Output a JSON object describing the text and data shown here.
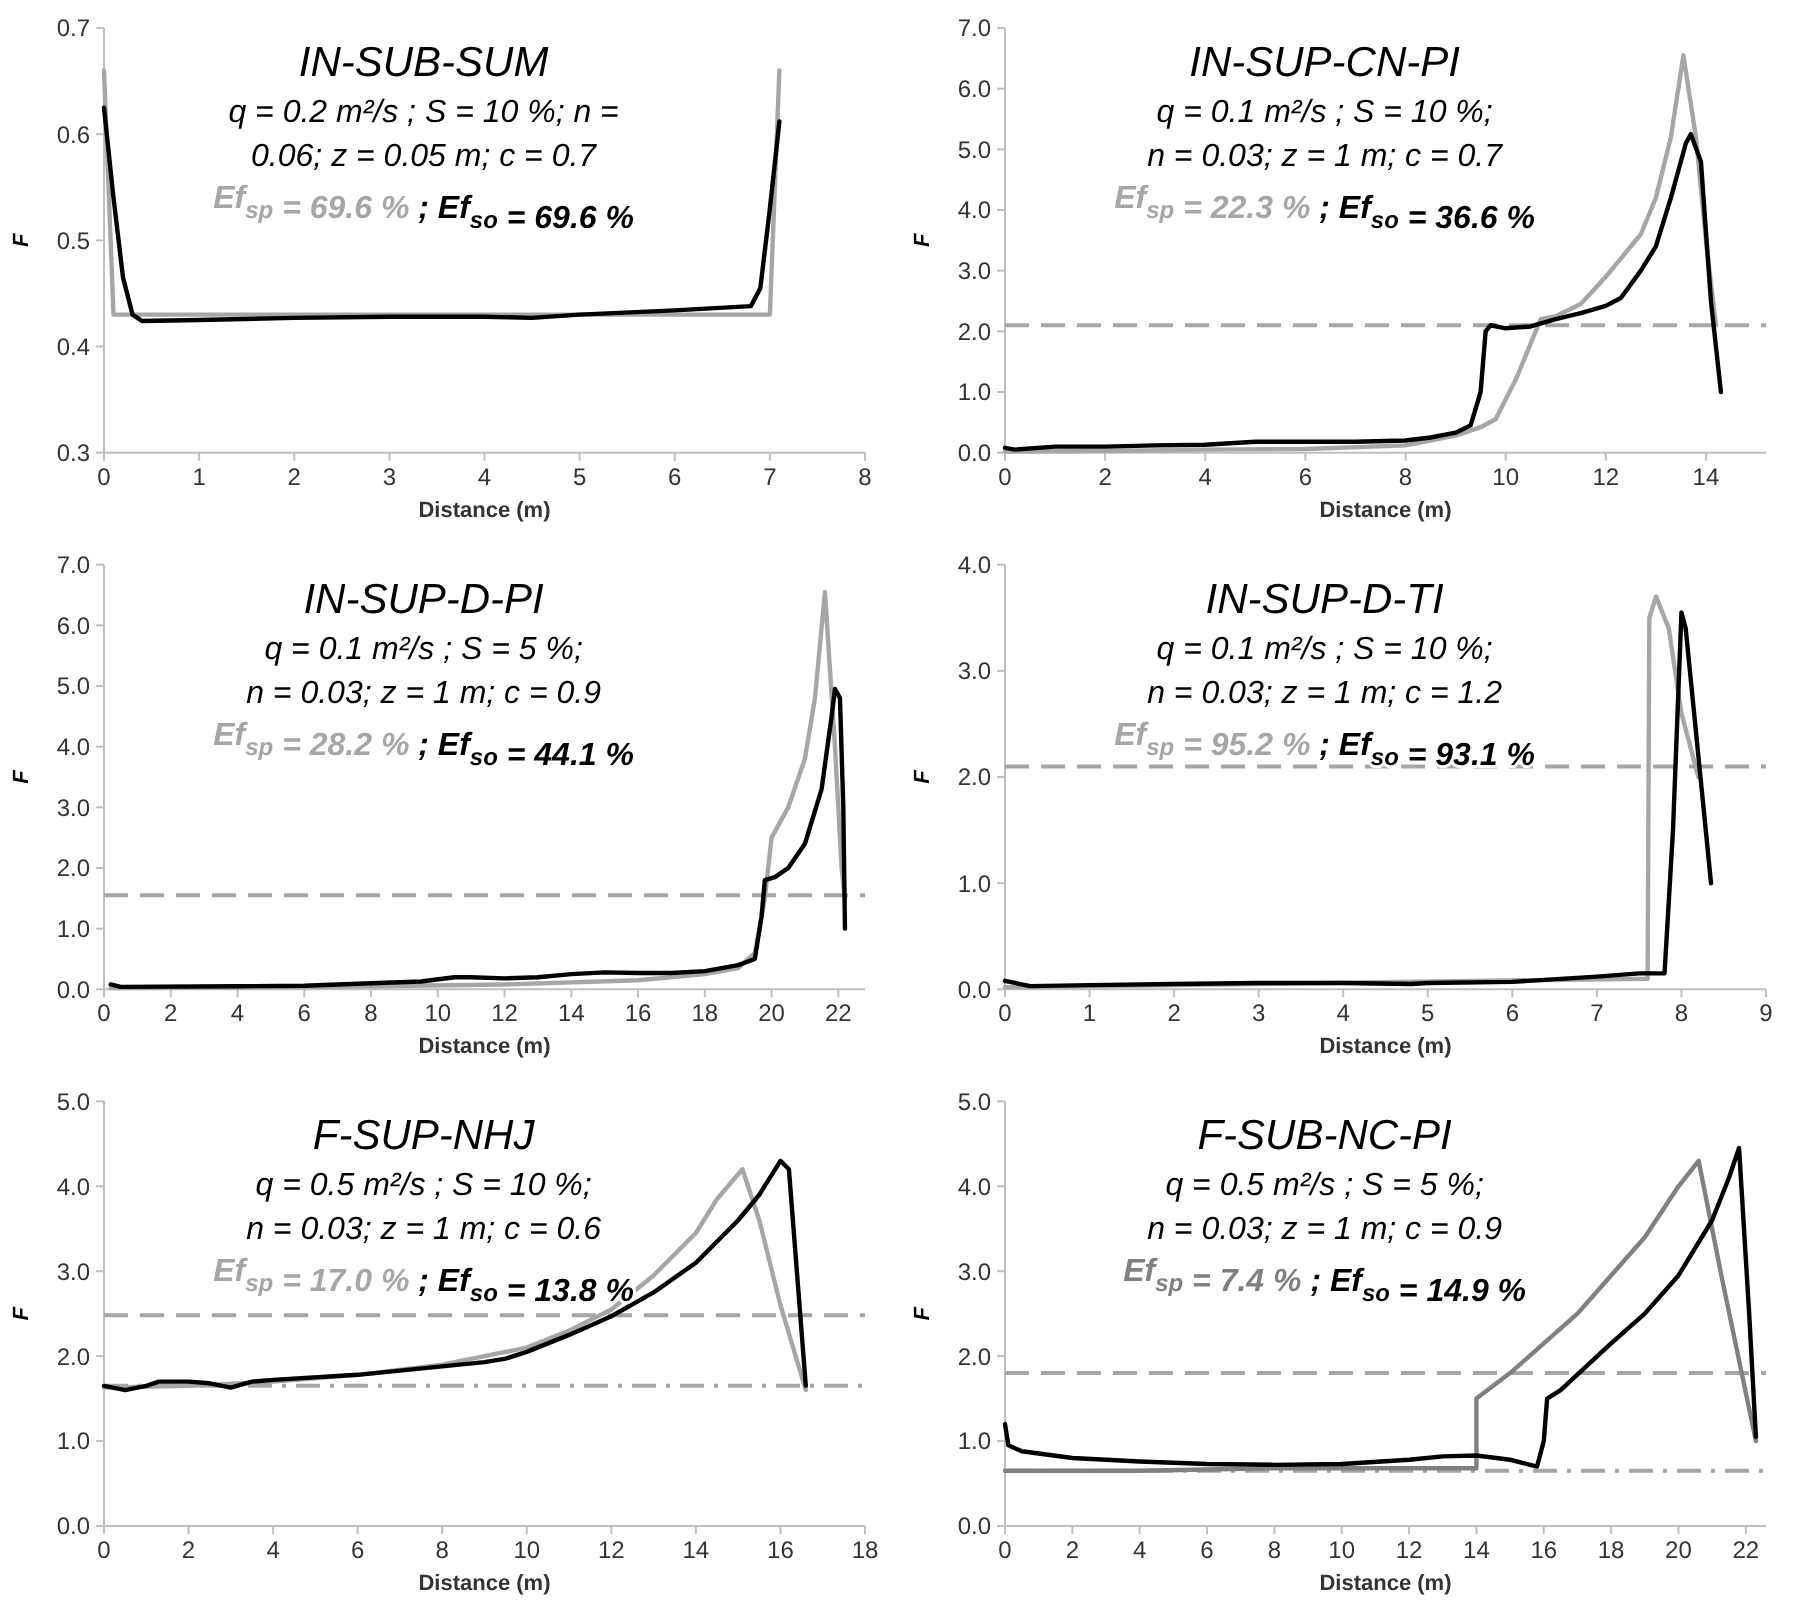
{
  "chart_data": [
    {
      "type": "line",
      "title": "IN-SUB-SUM",
      "annotations": [
        "q =  0.2 m²/s ; S = 10 %; n =",
        "0.06; z = 0.05 m; c = 0.7",
        "Ef$_{sp}$ = 69.6 %",
        "; Ef$_{so}$ = 69.6 %"
      ],
      "xlabel": "Distance (m)",
      "ylabel": "F",
      "xlim": [
        0,
        8
      ],
      "xticks": [
        0,
        1,
        2,
        3,
        4,
        5,
        6,
        7,
        8
      ],
      "ylim": [
        0.3,
        0.7
      ],
      "yticks": [
        0.3,
        0.4,
        0.5,
        0.6,
        0.7
      ],
      "series": [
        {
          "color": "#a6a6a6",
          "x": [
            0,
            0.1,
            7.0,
            7.1
          ],
          "values": [
            0.66,
            0.43,
            0.43,
            0.66
          ]
        },
        {
          "color": "#000000",
          "x": [
            0,
            0.1,
            0.2,
            0.3,
            0.4,
            1,
            2,
            3,
            4,
            4.5,
            5,
            6,
            6.8,
            6.9,
            7.0,
            7.1
          ],
          "values": [
            0.625,
            0.54,
            0.465,
            0.43,
            0.424,
            0.425,
            0.427,
            0.428,
            0.428,
            0.427,
            0.43,
            0.434,
            0.438,
            0.455,
            0.53,
            0.612
          ]
        }
      ]
    },
    {
      "type": "line",
      "title": "IN-SUP-CN-PI",
      "annotations": [
        "q =  0.1 m²/s ; S = 10 %;",
        "n = 0.03; z = 1 m; c = 0.7",
        "Ef$_{sp}$ = 22.3 %",
        "; Ef$_{so}$ = 36.6 %"
      ],
      "xlabel": "Distance (m)",
      "ylabel": "F",
      "xlim": [
        0,
        15.2
      ],
      "xticks": [
        0,
        2,
        4,
        6,
        8,
        10,
        12,
        14
      ],
      "ylim": [
        0,
        7
      ],
      "yticks": [
        {
          "value": 0,
          "label": "0.0"
        },
        {
          "value": 1,
          "label": "1.0"
        },
        {
          "value": 2,
          "label": "2.0"
        },
        {
          "value": 3,
          "label": "3.0"
        },
        {
          "value": 4,
          "label": "4.0"
        },
        {
          "value": 5,
          "label": "5.0"
        },
        {
          "value": 6,
          "label": "6.0"
        },
        {
          "value": 7,
          "label": "7.0"
        }
      ],
      "ref_lines": [
        {
          "axis": "y",
          "value": 2.1,
          "color": "#a6a6a6",
          "line_style": "dashed"
        }
      ],
      "series": [
        {
          "color": "#a6a6a6",
          "x": [
            0,
            2,
            4,
            6,
            8,
            9,
            9.5,
            9.8,
            10.2,
            10.7,
            11,
            11.5,
            12,
            12.3,
            12.7,
            13,
            13.3,
            13.55,
            13.8,
            14,
            14.2
          ],
          "values": [
            0.02,
            0.03,
            0.05,
            0.06,
            0.12,
            0.28,
            0.42,
            0.55,
            1.2,
            2.2,
            2.25,
            2.45,
            2.9,
            3.2,
            3.6,
            4.2,
            5.2,
            6.55,
            5.2,
            3.5,
            2.1
          ]
        },
        {
          "color": "#000000",
          "x": [
            0,
            0.2,
            1,
            2,
            3,
            4,
            5,
            6,
            7,
            8,
            8.5,
            9,
            9.3,
            9.5,
            9.6,
            9.7,
            10,
            10.5,
            11,
            11.5,
            12,
            12.3,
            12.7,
            13,
            13.3,
            13.6,
            13.7,
            13.9,
            14.1,
            14.3
          ],
          "values": [
            0.08,
            0.05,
            0.1,
            0.1,
            0.12,
            0.13,
            0.18,
            0.18,
            0.18,
            0.2,
            0.25,
            0.33,
            0.45,
            1.0,
            2.0,
            2.1,
            2.05,
            2.08,
            2.2,
            2.3,
            2.42,
            2.55,
            3.0,
            3.4,
            4.2,
            5.1,
            5.25,
            4.8,
            2.5,
            1.0
          ]
        }
      ]
    },
    {
      "type": "line",
      "title": "IN-SUP-D-PI",
      "annotations": [
        "q =  0.1 m²/s ; S = 5 %;",
        "n = 0.03; z = 1 m; c = 0.9",
        "Ef$_{sp}$ = 28.2 %",
        "; Ef$_{so}$ = 44.1 %"
      ],
      "xlabel": "Distance (m)",
      "ylabel": "F",
      "xlim": [
        0,
        22.8
      ],
      "xticks": [
        0,
        2,
        4,
        6,
        8,
        10,
        12,
        14,
        16,
        18,
        20,
        22
      ],
      "ylim": [
        0,
        7
      ],
      "yticks": [
        {
          "value": 0,
          "label": "0.0"
        },
        {
          "value": 1,
          "label": "1.0"
        },
        {
          "value": 2,
          "label": "2.0"
        },
        {
          "value": 3,
          "label": "3.0"
        },
        {
          "value": 4,
          "label": "4.0"
        },
        {
          "value": 5,
          "label": "5.0"
        },
        {
          "value": 6,
          "label": "6.0"
        },
        {
          "value": 7,
          "label": "7.0"
        }
      ],
      "ref_lines": [
        {
          "axis": "y",
          "value": 1.55,
          "color": "#a6a6a6",
          "line_style": "dashed"
        }
      ],
      "series": [
        {
          "color": "#a6a6a6",
          "x": [
            0.2,
            4,
            8,
            12,
            16,
            18,
            19,
            19.5,
            19.8,
            20,
            20.5,
            21,
            21.3,
            21.6,
            21.9,
            22.1,
            22.2
          ],
          "values": [
            0.02,
            0.03,
            0.05,
            0.08,
            0.15,
            0.25,
            0.35,
            0.6,
            1.5,
            2.5,
            3.0,
            3.8,
            4.8,
            6.55,
            4.0,
            2.0,
            1.5
          ]
        },
        {
          "color": "#000000",
          "x": [
            0.2,
            0.5,
            4,
            6,
            8,
            9.5,
            10.5,
            11,
            12,
            13,
            14,
            15,
            16,
            17,
            18,
            19,
            19.5,
            19.7,
            19.8,
            20.1,
            20.5,
            21,
            21.5,
            21.8,
            21.9,
            22.05,
            22.15,
            22.2
          ],
          "values": [
            0.08,
            0.04,
            0.05,
            0.06,
            0.1,
            0.13,
            0.2,
            0.2,
            0.18,
            0.2,
            0.25,
            0.28,
            0.27,
            0.27,
            0.3,
            0.4,
            0.5,
            1.2,
            1.8,
            1.85,
            2.0,
            2.4,
            3.3,
            4.5,
            4.95,
            4.8,
            3.0,
            1.0
          ]
        }
      ]
    },
    {
      "type": "line",
      "title": "IN-SUP-D-TI",
      "annotations": [
        "q =  0.1 m²/s ; S = 10 %;",
        "n = 0.03; z = 1 m; c = 1.2",
        "Ef$_{sp}$ = 95.2 %",
        "; Ef$_{so}$ = 93.1 %"
      ],
      "xlabel": "Distance (m)",
      "ylabel": "F",
      "xlim": [
        0,
        9
      ],
      "xticks": [
        0,
        1,
        2,
        3,
        4,
        5,
        6,
        7,
        8,
        9
      ],
      "ylim": [
        0,
        4
      ],
      "yticks": [
        {
          "value": 0,
          "label": "0.0"
        },
        {
          "value": 1,
          "label": "1.0"
        },
        {
          "value": 2,
          "label": "2.0"
        },
        {
          "value": 3,
          "label": "3.0"
        },
        {
          "value": 4,
          "label": "4.0"
        }
      ],
      "ref_lines": [
        {
          "axis": "y",
          "value": 2.1,
          "color": "#a6a6a6",
          "line_style": "dashed"
        }
      ],
      "series": [
        {
          "color": "#a6a6a6",
          "x": [
            0,
            7.6,
            7.62,
            7.7,
            7.85,
            8.0,
            8.2
          ],
          "values": [
            0.02,
            0.1,
            3.5,
            3.7,
            3.4,
            2.6,
            2.0
          ]
        },
        {
          "color": "#000000",
          "x": [
            0,
            0.3,
            1,
            2,
            3,
            4,
            4.8,
            5,
            6,
            7,
            7.5,
            7.8,
            7.9,
            8.0,
            8.05,
            8.35
          ],
          "values": [
            0.08,
            0.03,
            0.04,
            0.05,
            0.06,
            0.06,
            0.05,
            0.06,
            0.07,
            0.12,
            0.15,
            0.15,
            1.5,
            3.55,
            3.4,
            1.0
          ]
        }
      ]
    },
    {
      "type": "line",
      "title": "F-SUP-NHJ",
      "annotations": [
        "q =  0.5 m²/s ; S = 10 %;",
        "n = 0.03; z = 1 m; c = 0.6",
        "Ef$_{sp}$ = 17.0 %",
        "; Ef$_{so}$ = 13.8 %"
      ],
      "xlabel": "Distance (m)",
      "ylabel": "F",
      "xlim": [
        0,
        18
      ],
      "xticks": [
        0,
        2,
        4,
        6,
        8,
        10,
        12,
        14,
        16,
        18
      ],
      "ylim": [
        0,
        5
      ],
      "yticks": [
        {
          "value": 0,
          "label": "0.0"
        },
        {
          "value": 1,
          "label": "1.0"
        },
        {
          "value": 2,
          "label": "2.0"
        },
        {
          "value": 3,
          "label": "3.0"
        },
        {
          "value": 4,
          "label": "4.0"
        },
        {
          "value": 5,
          "label": "5.0"
        }
      ],
      "ref_lines": [
        {
          "axis": "y",
          "value": 2.48,
          "color": "#a6a6a6",
          "line_style": "dashed"
        },
        {
          "axis": "y",
          "value": 1.65,
          "color": "#a6a6a6",
          "line_style": "dashdot"
        }
      ],
      "series": [
        {
          "color": "#a6a6a6",
          "x": [
            0,
            2,
            4,
            6,
            8,
            10,
            11,
            12,
            13,
            14,
            14.5,
            15.1,
            15.5,
            16,
            16.6
          ],
          "values": [
            1.63,
            1.65,
            1.7,
            1.78,
            1.9,
            2.1,
            2.3,
            2.55,
            2.95,
            3.45,
            3.85,
            4.2,
            3.6,
            2.6,
            1.6
          ]
        },
        {
          "color": "#000000",
          "x": [
            0,
            0.5,
            1,
            1.3,
            2,
            2.5,
            3,
            3.5,
            4,
            6,
            8,
            9,
            9.5,
            10,
            11,
            12,
            13,
            14,
            15,
            15.5,
            16,
            16.2,
            16.6
          ],
          "values": [
            1.65,
            1.6,
            1.65,
            1.7,
            1.7,
            1.68,
            1.63,
            1.7,
            1.72,
            1.78,
            1.88,
            1.93,
            1.97,
            2.05,
            2.25,
            2.47,
            2.75,
            3.1,
            3.6,
            3.9,
            4.3,
            4.2,
            1.65
          ]
        }
      ]
    },
    {
      "type": "line",
      "title": "F-SUB-NC-PI",
      "annotations": [
        "q =  0.5 m²/s ; S = 5 %;",
        "n = 0.03; z = 1 m; c = 0.9",
        "Ef$_{sp}$ = 7.4 %",
        "; Ef$_{so}$ = 14.9 %"
      ],
      "xlabel": "Distance (m)",
      "ylabel": "F",
      "xlim": [
        0,
        22.6
      ],
      "xticks": [
        0,
        2,
        4,
        6,
        8,
        10,
        12,
        14,
        16,
        18,
        20,
        22
      ],
      "ylim": [
        0,
        5
      ],
      "yticks": [
        {
          "value": 0,
          "label": "0.0"
        },
        {
          "value": 1,
          "label": "1.0"
        },
        {
          "value": 2,
          "label": "2.0"
        },
        {
          "value": 3,
          "label": "3.0"
        },
        {
          "value": 4,
          "label": "4.0"
        },
        {
          "value": 5,
          "label": "5.0"
        }
      ],
      "ref_lines": [
        {
          "axis": "y",
          "value": 1.8,
          "color": "#a6a6a6",
          "line_style": "dashed"
        },
        {
          "axis": "y",
          "value": 0.65,
          "color": "#a6a6a6",
          "line_style": "dashdot"
        }
      ],
      "series": [
        {
          "color": "#808080",
          "x": [
            0,
            4,
            8,
            12,
            14,
            14,
            15,
            16,
            17,
            18,
            19,
            20,
            20.6,
            21.3,
            22.3
          ],
          "values": [
            0.65,
            0.65,
            0.68,
            0.68,
            0.68,
            1.5,
            1.8,
            2.15,
            2.5,
            2.95,
            3.4,
            4.0,
            4.3,
            2.9,
            1.0
          ]
        },
        {
          "color": "#000000",
          "x": [
            0,
            0.1,
            0.5,
            2,
            4,
            6,
            8,
            10,
            12,
            13,
            14,
            15,
            15.8,
            16,
            16.1,
            16.5,
            18,
            19,
            20,
            21,
            21.5,
            21.8,
            22.1,
            22.3
          ],
          "values": [
            1.2,
            0.95,
            0.88,
            0.8,
            0.76,
            0.73,
            0.72,
            0.73,
            0.78,
            0.82,
            0.83,
            0.78,
            0.7,
            1.0,
            1.5,
            1.6,
            2.15,
            2.5,
            2.95,
            3.6,
            4.1,
            4.45,
            2.5,
            1.05
          ]
        }
      ]
    }
  ]
}
